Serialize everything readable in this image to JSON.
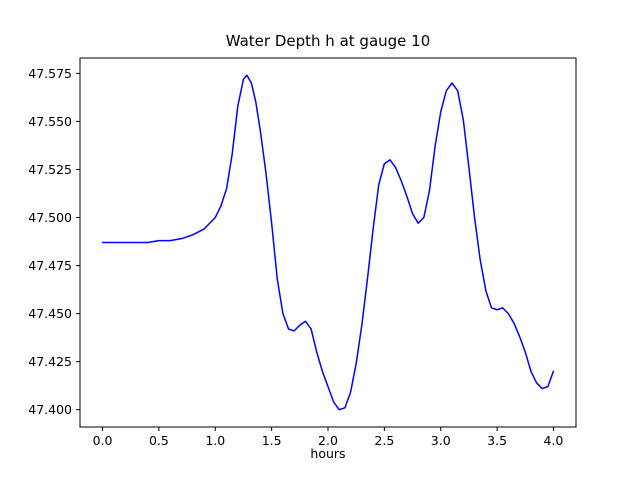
{
  "chart_data": {
    "type": "line",
    "title": "Water Depth h at gauge 10",
    "xlabel": "hours",
    "ylabel": "",
    "legend": null,
    "grid": false,
    "line_color": "#0000ff",
    "line_width": 1.5,
    "xlim": [
      -0.2,
      4.2
    ],
    "ylim": [
      47.391,
      47.583
    ],
    "xticks": [
      0.0,
      0.5,
      1.0,
      1.5,
      2.0,
      2.5,
      3.0,
      3.5,
      4.0
    ],
    "xtick_labels": [
      "0.0",
      "0.5",
      "1.0",
      "1.5",
      "2.0",
      "2.5",
      "3.0",
      "3.5",
      "4.0"
    ],
    "yticks": [
      47.4,
      47.425,
      47.45,
      47.475,
      47.5,
      47.525,
      47.55,
      47.575
    ],
    "ytick_labels": [
      "47.400",
      "47.425",
      "47.450",
      "47.475",
      "47.500",
      "47.525",
      "47.550",
      "47.575"
    ],
    "x": [
      0.0,
      0.1,
      0.2,
      0.3,
      0.4,
      0.5,
      0.6,
      0.7,
      0.8,
      0.9,
      0.95,
      1.0,
      1.05,
      1.1,
      1.15,
      1.2,
      1.25,
      1.28,
      1.32,
      1.36,
      1.4,
      1.45,
      1.5,
      1.55,
      1.6,
      1.65,
      1.7,
      1.75,
      1.8,
      1.85,
      1.9,
      1.95,
      2.0,
      2.05,
      2.1,
      2.15,
      2.2,
      2.25,
      2.3,
      2.35,
      2.4,
      2.45,
      2.5,
      2.55,
      2.6,
      2.65,
      2.7,
      2.75,
      2.8,
      2.85,
      2.9,
      2.95,
      3.0,
      3.05,
      3.1,
      3.15,
      3.2,
      3.25,
      3.3,
      3.35,
      3.4,
      3.45,
      3.5,
      3.55,
      3.6,
      3.65,
      3.7,
      3.75,
      3.8,
      3.85,
      3.9,
      3.95,
      4.0
    ],
    "y": [
      47.487,
      47.487,
      47.487,
      47.487,
      47.487,
      47.488,
      47.488,
      47.489,
      47.491,
      47.494,
      47.497,
      47.5,
      47.506,
      47.515,
      47.533,
      47.558,
      47.572,
      47.574,
      47.57,
      47.56,
      47.545,
      47.523,
      47.497,
      47.468,
      47.45,
      47.442,
      47.441,
      47.444,
      47.446,
      47.442,
      47.43,
      47.42,
      47.412,
      47.404,
      47.4,
      47.401,
      47.409,
      47.424,
      47.444,
      47.468,
      47.494,
      47.517,
      47.528,
      47.53,
      47.526,
      47.519,
      47.511,
      47.502,
      47.497,
      47.5,
      47.514,
      47.537,
      47.555,
      47.566,
      47.57,
      47.566,
      47.551,
      47.526,
      47.5,
      47.478,
      47.462,
      47.453,
      47.452,
      47.453,
      47.45,
      47.445,
      47.438,
      47.43,
      47.42,
      47.414,
      47.411,
      47.412,
      47.42
    ]
  }
}
